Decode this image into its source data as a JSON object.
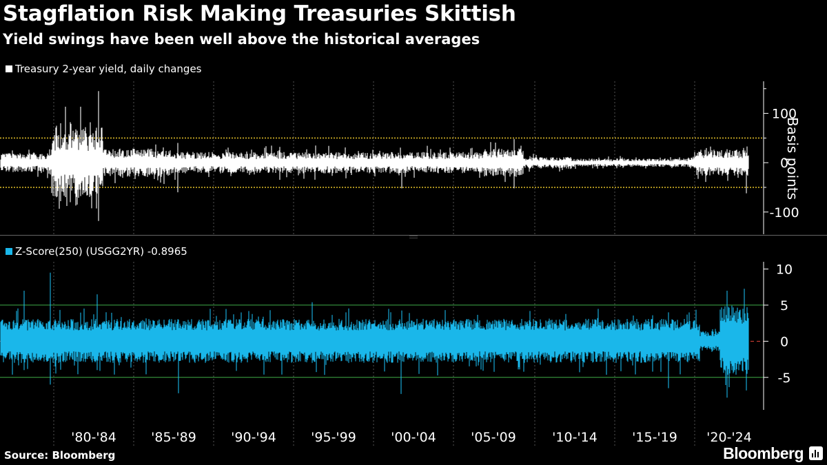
{
  "title": "Stagflation Risk Making Treasuries Skittish",
  "subtitle": "Yield swings have been well above the historical averages",
  "source": "Source: Bloomberg",
  "brand": "Bloomberg",
  "chart_data": [
    {
      "type": "bar",
      "series": [
        {
          "name": "Treasury 2-year yield, daily changes",
          "color": "#ffffff"
        }
      ],
      "ylabel": "Basis points",
      "ylim": [
        -145,
        165
      ],
      "yticks": [
        "100",
        "0",
        "-100"
      ],
      "ytick_values": [
        100,
        0,
        -100
      ],
      "reference_lines": [
        50,
        -50
      ],
      "reference_color": "#e6c229",
      "x_period": [
        "1976",
        "2025"
      ],
      "grid": "vertical dotted"
    },
    {
      "type": "bar",
      "series": [
        {
          "name": "Z-Score(250) (USGG2YR) -0.8965",
          "color": "#1ab7ea"
        }
      ],
      "ylim": [
        -9.5,
        11
      ],
      "yticks": [
        "10",
        "5",
        "0",
        "-5"
      ],
      "ytick_values": [
        10,
        5,
        0,
        -5
      ],
      "reference_lines": [
        5,
        -5
      ],
      "reference_color": "#3fae49",
      "zero_line_color": "#e8443a",
      "x_period": [
        "1976",
        "2025"
      ],
      "xtick_labels": [
        "'80-'84",
        "'85-'89",
        "'90-'94",
        "'95-'99",
        "'00-'04",
        "'05-'09",
        "'10-'14",
        "'15-'19",
        "'20-'24"
      ],
      "grid": "vertical dotted"
    }
  ]
}
